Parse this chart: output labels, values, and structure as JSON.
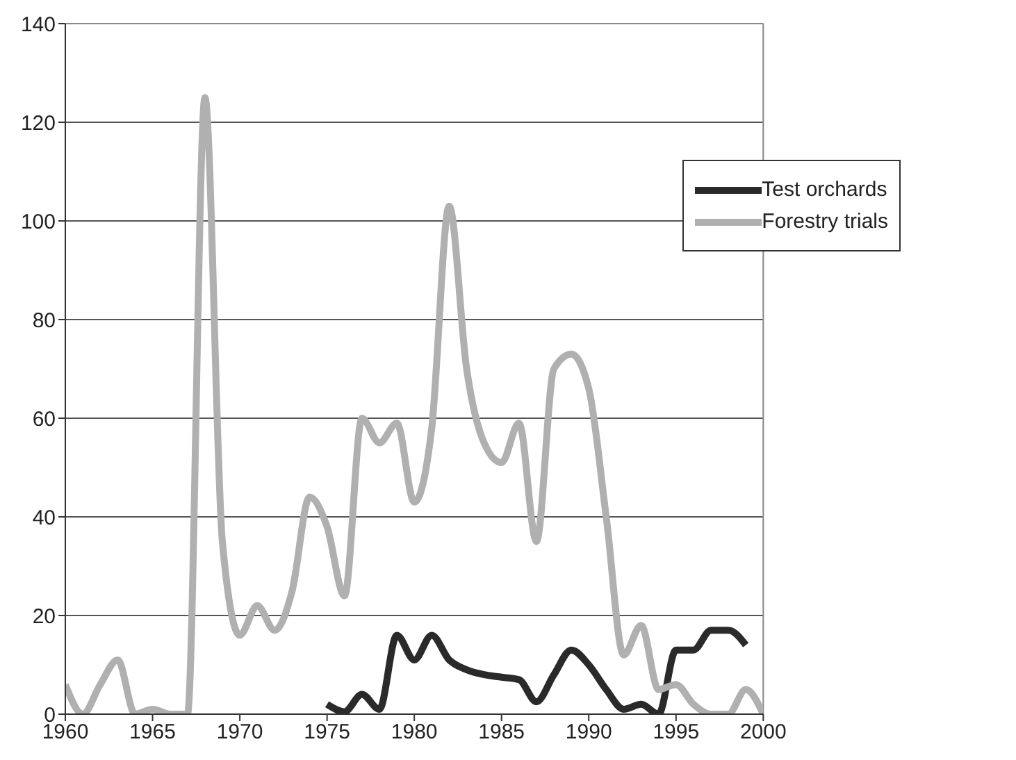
{
  "chart_data": {
    "type": "line",
    "x": [
      1960,
      1961,
      1962,
      1963,
      1964,
      1965,
      1966,
      1967,
      1968,
      1969,
      1970,
      1971,
      1972,
      1973,
      1974,
      1975,
      1976,
      1977,
      1978,
      1979,
      1980,
      1981,
      1982,
      1983,
      1984,
      1985,
      1986,
      1987,
      1988,
      1989,
      1990,
      1991,
      1992,
      1993,
      1994,
      1995,
      1996,
      1997,
      1998,
      1999,
      2000
    ],
    "series": [
      {
        "name": "Test orchards",
        "color": "#2a2a2a",
        "values": [
          null,
          null,
          null,
          null,
          null,
          null,
          null,
          null,
          null,
          null,
          null,
          null,
          null,
          null,
          null,
          2,
          0.5,
          4,
          1,
          16,
          11,
          16,
          11,
          9,
          8,
          7.5,
          7,
          2.5,
          8,
          13,
          10,
          5,
          1,
          2,
          0,
          13,
          13,
          17,
          17,
          14,
          null
        ]
      },
      {
        "name": "Forestry trials",
        "color": "#b0b0b0",
        "values": [
          6,
          0,
          6,
          11,
          0,
          1,
          0,
          0,
          125,
          35,
          16,
          22,
          17,
          25,
          44,
          38,
          24,
          60,
          55,
          59,
          43,
          58,
          103,
          70,
          55,
          51,
          59,
          35,
          70,
          73,
          66,
          40,
          12,
          18,
          5,
          6,
          2,
          0,
          0,
          5,
          0
        ]
      }
    ],
    "xlim": [
      1960,
      2000
    ],
    "xticks": [
      1960,
      1965,
      1970,
      1975,
      1980,
      1985,
      1990,
      1995,
      2000
    ],
    "ylim": [
      0,
      140
    ],
    "yticks": [
      0,
      20,
      40,
      60,
      80,
      100,
      120,
      140
    ],
    "grid": "y",
    "legend": "top right",
    "marker": "none",
    "line_style": "solid"
  }
}
